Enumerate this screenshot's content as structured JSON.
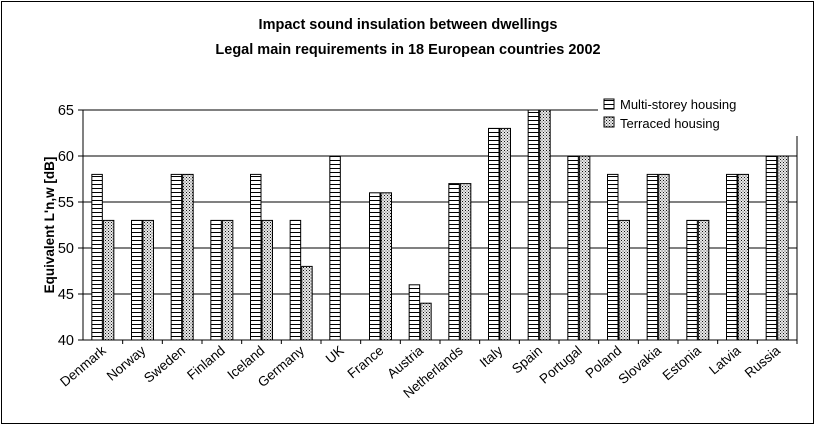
{
  "chart_data": {
    "type": "bar",
    "title": "Impact sound insulation between dwellings",
    "subtitle": "Legal main requirements in 18 European countries 2002",
    "xlabel": "",
    "ylabel": "Equivalent L'n,w [dB]",
    "ylim": [
      40,
      65
    ],
    "yticks": [
      "40",
      "45",
      "50",
      "55",
      "60",
      "65"
    ],
    "grid": true,
    "legend_position": "top-right",
    "categories": [
      "Denmark",
      "Norway",
      "Sweden",
      "Finland",
      "Iceland",
      "Germany",
      "UK",
      "France",
      "Austria",
      "Netherlands",
      "Italy",
      "Spain",
      "Portugal",
      "Poland",
      "Slovakia",
      "Estonia",
      "Latvia",
      "Russia"
    ],
    "series": [
      {
        "name": "Multi-storey housing",
        "pattern": "horizontal-stripes",
        "values": [
          58,
          53,
          58,
          53,
          58,
          53,
          60,
          56,
          46,
          57,
          63,
          65,
          60,
          58,
          58,
          53,
          58,
          60
        ]
      },
      {
        "name": "Terraced housing",
        "pattern": "crosshatch",
        "values": [
          53,
          53,
          58,
          53,
          53,
          48,
          null,
          56,
          44,
          57,
          63,
          65,
          60,
          53,
          58,
          53,
          58,
          60
        ]
      }
    ]
  }
}
